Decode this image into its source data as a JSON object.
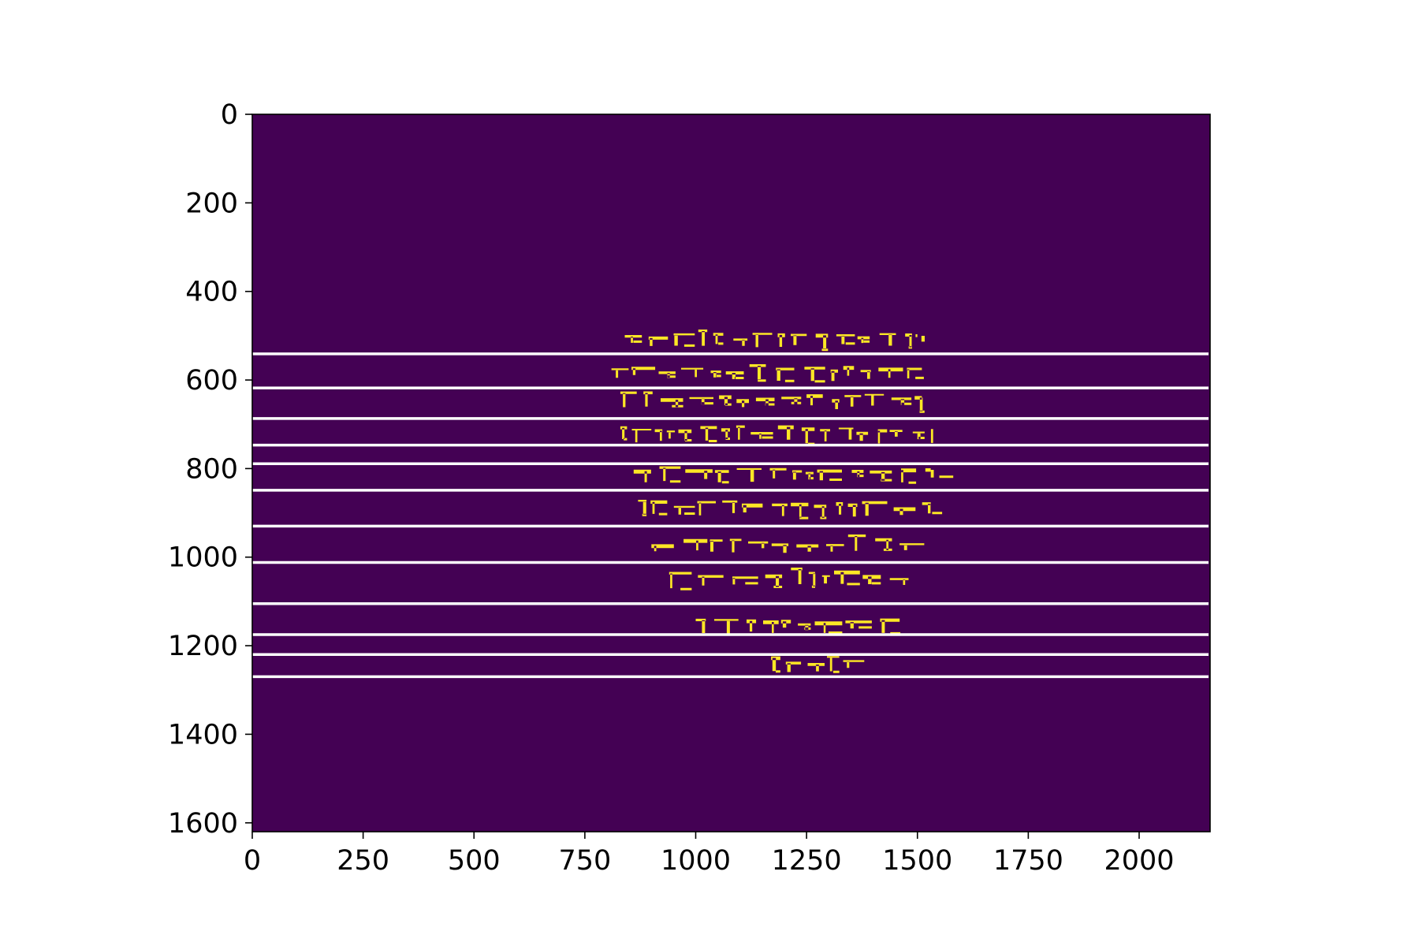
{
  "chart_data": {
    "type": "heatmap",
    "title": "",
    "xlabel": "",
    "ylabel": "",
    "xlim": [
      0,
      2160
    ],
    "ylim": [
      1620,
      0
    ],
    "y_axis_inverted": true,
    "xticks": [
      0,
      250,
      500,
      750,
      1000,
      1250,
      1500,
      1750,
      2000
    ],
    "yticks": [
      0,
      200,
      400,
      600,
      800,
      1000,
      1200,
      1400,
      1600
    ],
    "xtick_labels": [
      "0",
      "250",
      "500",
      "750",
      "1000",
      "1250",
      "1500",
      "1750",
      "2000"
    ],
    "ytick_labels": [
      "0",
      "200",
      "400",
      "600",
      "800",
      "1000",
      "1200",
      "1400",
      "1600"
    ],
    "colormap": "viridis",
    "background_color": "#440154",
    "foreground_color": "#fde725",
    "hline_color": "#ffffff",
    "horizontal_lines_y": [
      541,
      618,
      687,
      747,
      789,
      849,
      930,
      1012,
      1105,
      1175,
      1220,
      1270
    ],
    "text_region": {
      "x_range": [
        830,
        1530
      ],
      "y_range": [
        480,
        1300
      ]
    },
    "text_rows": [
      {
        "y": 510,
        "x_start": 840,
        "x_end": 1500
      },
      {
        "y": 585,
        "x_start": 810,
        "x_end": 1510
      },
      {
        "y": 650,
        "x_start": 830,
        "x_end": 1510
      },
      {
        "y": 725,
        "x_start": 830,
        "x_end": 1530
      },
      {
        "y": 815,
        "x_start": 860,
        "x_end": 1530
      },
      {
        "y": 893,
        "x_start": 870,
        "x_end": 1530
      },
      {
        "y": 975,
        "x_start": 900,
        "x_end": 1520
      },
      {
        "y": 1050,
        "x_start": 940,
        "x_end": 1480
      },
      {
        "y": 1155,
        "x_start": 1000,
        "x_end": 1460
      },
      {
        "y": 1245,
        "x_start": 1170,
        "x_end": 1380
      }
    ],
    "grid": false
  }
}
